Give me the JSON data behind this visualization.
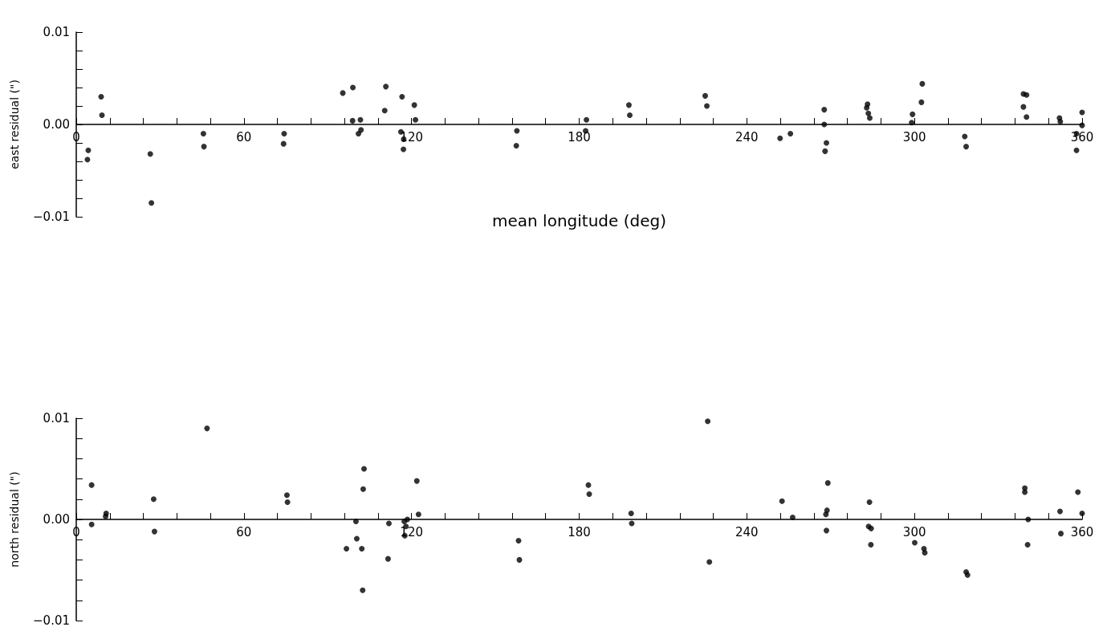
{
  "chart_data": [
    {
      "type": "scatter",
      "ylabel": "east residual (\")",
      "xlabel": "mean longitude (deg)",
      "marker": "circle",
      "grid": false,
      "color": "#000000",
      "xlim": [
        0,
        360
      ],
      "xticks": [
        0,
        {
          "value": 12,
          "label": null
        },
        {
          "value": 24,
          "label": null
        },
        {
          "value": 36,
          "label": null
        },
        {
          "value": 48,
          "label": null
        },
        60,
        {
          "value": 72,
          "label": null
        },
        {
          "value": 84,
          "label": null
        },
        {
          "value": 96,
          "label": null
        },
        {
          "value": 108,
          "label": null
        },
        120,
        {
          "value": 132,
          "label": null
        },
        {
          "value": 144,
          "label": null
        },
        {
          "value": 156,
          "label": null
        },
        {
          "value": 168,
          "label": null
        },
        180,
        {
          "value": 192,
          "label": null
        },
        {
          "value": 204,
          "label": null
        },
        {
          "value": 216,
          "label": null
        },
        {
          "value": 228,
          "label": null
        },
        240,
        {
          "value": 252,
          "label": null
        },
        {
          "value": 264,
          "label": null
        },
        {
          "value": 276,
          "label": null
        },
        {
          "value": 288,
          "label": null
        },
        300,
        {
          "value": 312,
          "label": null
        },
        {
          "value": 324,
          "label": null
        },
        {
          "value": 336,
          "label": null
        },
        {
          "value": 348,
          "label": null
        },
        360
      ],
      "ylim": [
        -0.01,
        0.01
      ],
      "yticks": [
        {
          "value": -0.01,
          "label": "−0.01"
        },
        {
          "value": -0.008,
          "label": null
        },
        {
          "value": -0.006,
          "label": null
        },
        {
          "value": -0.004,
          "label": null
        },
        {
          "value": -0.002,
          "label": null
        },
        {
          "value": 0,
          "label": "0.00"
        },
        {
          "value": 0.002,
          "label": null
        },
        {
          "value": 0.004,
          "label": null
        },
        {
          "value": 0.006,
          "label": null
        },
        {
          "value": 0.008,
          "label": null
        },
        {
          "value": 0.01,
          "label": "0.01"
        }
      ],
      "x": [
        4.3,
        4.0,
        8.9,
        9.2,
        26.5,
        26.9,
        45.5,
        45.7,
        74.4,
        74.2,
        95.4,
        99,
        98.9,
        101.7,
        101.9,
        101,
        110.8,
        110.4,
        116.6,
        116.2,
        117.2,
        117.1,
        121,
        121.4,
        157.7,
        157.5,
        182.6,
        182.3,
        197.8,
        198.1,
        225.1,
        225.7,
        251.9,
        255.6,
        267.7,
        267.7,
        268.5,
        268,
        283.2,
        282.9,
        283.5,
        284,
        299.3,
        299,
        302.8,
        302.5,
        318,
        318.5,
        339,
        340.1,
        339,
        340.1,
        351.9,
        352.2,
        358,
        358,
        360,
        360
      ],
      "values": [
        -0.0028,
        -0.0038,
        0.003,
        0.001,
        -0.0032,
        -0.0085,
        -0.001,
        -0.0024,
        -0.001,
        -0.0021,
        0.0034,
        0.004,
        0.0004,
        0.0005,
        -0.0006,
        -0.001,
        0.0041,
        0.0015,
        0.003,
        -0.0008,
        -0.0016,
        -0.0027,
        0.0021,
        0.0005,
        -0.0007,
        -0.0023,
        0.0005,
        -0.0007,
        0.0021,
        0.001,
        0.0031,
        0.002,
        -0.0015,
        -0.001,
        0.0016,
        0.0,
        -0.002,
        -0.0029,
        0.0022,
        0.0018,
        0.0012,
        0.0007,
        0.0011,
        0.0002,
        0.0044,
        0.0024,
        -0.0013,
        -0.0024,
        0.0033,
        0.0032,
        0.0019,
        0.0008,
        0.0007,
        0.0003,
        -0.0028,
        -0.001,
        0.0013,
        -0.0001
      ]
    },
    {
      "type": "scatter",
      "ylabel": "north residual (\")",
      "marker": "circle",
      "grid": false,
      "color": "#000000",
      "xlim": [
        0,
        360
      ],
      "xticks": [
        0,
        {
          "value": 12,
          "label": null
        },
        {
          "value": 24,
          "label": null
        },
        {
          "value": 36,
          "label": null
        },
        {
          "value": 48,
          "label": null
        },
        60,
        {
          "value": 72,
          "label": null
        },
        {
          "value": 84,
          "label": null
        },
        {
          "value": 96,
          "label": null
        },
        {
          "value": 108,
          "label": null
        },
        120,
        {
          "value": 132,
          "label": null
        },
        {
          "value": 144,
          "label": null
        },
        {
          "value": 156,
          "label": null
        },
        {
          "value": 168,
          "label": null
        },
        180,
        {
          "value": 192,
          "label": null
        },
        {
          "value": 204,
          "label": null
        },
        {
          "value": 216,
          "label": null
        },
        {
          "value": 228,
          "label": null
        },
        240,
        {
          "value": 252,
          "label": null
        },
        {
          "value": 264,
          "label": null
        },
        {
          "value": 276,
          "label": null
        },
        {
          "value": 288,
          "label": null
        },
        300,
        {
          "value": 312,
          "label": null
        },
        {
          "value": 324,
          "label": null
        },
        {
          "value": 336,
          "label": null
        },
        {
          "value": 348,
          "label": null
        },
        360
      ],
      "ylim": [
        -0.01,
        0.01
      ],
      "yticks": [
        {
          "value": -0.01,
          "label": "−0.01"
        },
        {
          "value": -0.008,
          "label": null
        },
        {
          "value": -0.006,
          "label": null
        },
        {
          "value": -0.004,
          "label": null
        },
        {
          "value": -0.002,
          "label": null
        },
        {
          "value": 0,
          "label": "0.00"
        },
        {
          "value": 0.002,
          "label": null
        },
        {
          "value": 0.004,
          "label": null
        },
        {
          "value": 0.006,
          "label": null
        },
        {
          "value": 0.008,
          "label": null
        },
        {
          "value": 0.01,
          "label": "0.01"
        }
      ],
      "x": [
        5.5,
        5.5,
        10.7,
        10.5,
        27.7,
        28,
        46.6,
        46.8,
        75.4,
        75.6,
        96.7,
        100.1,
        100.4,
        102.2,
        103,
        102.7,
        102.5,
        111.9,
        111.6,
        117.4,
        118.5,
        118,
        117.6,
        121.9,
        122.5,
        158.3,
        158.6,
        183.3,
        183.6,
        198.6,
        198.8,
        226,
        226.6,
        252.6,
        256.4,
        269,
        268.7,
        268.3,
        268.5,
        283.9,
        283.6,
        284.5,
        284.4,
        300.1,
        303.4,
        303.7,
        318.5,
        319,
        339.5,
        339.5,
        340.7,
        340.5,
        352.1,
        352.4,
        358.5,
        360
      ],
      "values": [
        0.0034,
        -0.0005,
        0.0006,
        0.0003,
        0.002,
        -0.0012,
        null,
        0.009,
        0.0024,
        0.0017,
        -0.0029,
        -0.0002,
        -0.0019,
        -0.0029,
        0.005,
        0.003,
        -0.007,
        -0.0004,
        -0.0039,
        -0.0002,
        0.0,
        -0.0007,
        -0.0016,
        0.0038,
        0.0005,
        -0.0021,
        -0.004,
        0.0034,
        0.0025,
        0.0006,
        -0.0004,
        0.0097,
        -0.0042,
        0.0018,
        0.0002,
        0.0036,
        0.0009,
        0.0005,
        -0.0011,
        0.0017,
        -0.0007,
        -0.0009,
        -0.0025,
        -0.0023,
        -0.0029,
        -0.0033,
        -0.0052,
        -0.0055,
        0.0031,
        0.0027,
        0.0,
        -0.0025,
        0.0008,
        -0.0014,
        0.0027,
        0.0006
      ]
    }
  ]
}
